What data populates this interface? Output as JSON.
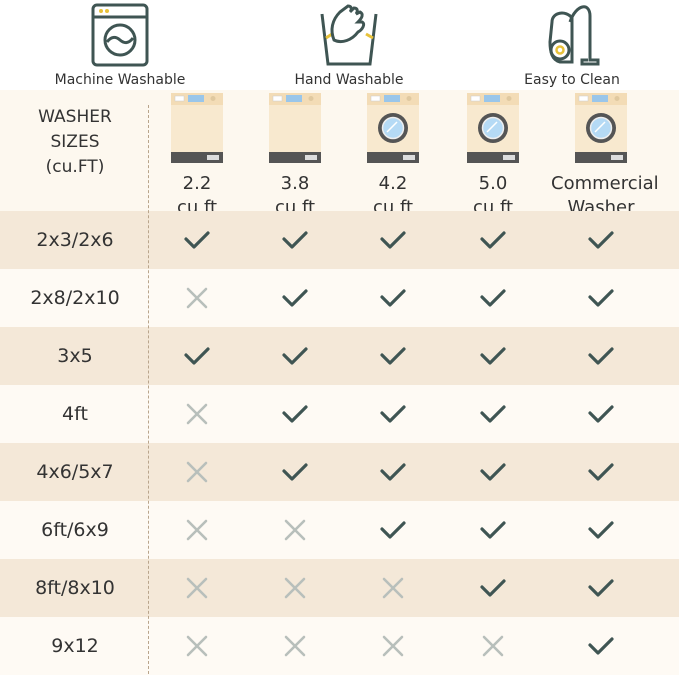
{
  "features": [
    {
      "label": "Machine Washable",
      "icon": "washing-machine-icon"
    },
    {
      "label": "Hand Washable",
      "icon": "hand-wash-icon"
    },
    {
      "label": "Easy to Clean",
      "icon": "vacuum-cleaner-icon"
    }
  ],
  "table": {
    "header_label": [
      "WASHER",
      "SIZES",
      "(cu.FT)"
    ],
    "columns": [
      {
        "line1": "2.2",
        "line2": "cu ft",
        "door": false
      },
      {
        "line1": "3.8",
        "line2": "cu ft",
        "door": false
      },
      {
        "line1": "4.2",
        "line2": "cu ft",
        "door": true
      },
      {
        "line1": "5.0",
        "line2": "cu ft",
        "door": true
      },
      {
        "line1": "Commercial",
        "line2": "Washer",
        "door": true
      }
    ],
    "rows": [
      {
        "size": "2x3/2x6",
        "fits": [
          true,
          true,
          true,
          true,
          true
        ]
      },
      {
        "size": "2x8/2x10",
        "fits": [
          false,
          true,
          true,
          true,
          true
        ]
      },
      {
        "size": "3x5",
        "fits": [
          true,
          true,
          true,
          true,
          true
        ]
      },
      {
        "size": "4ft",
        "fits": [
          false,
          true,
          true,
          true,
          true
        ]
      },
      {
        "size": "4x6/5x7",
        "fits": [
          false,
          true,
          true,
          true,
          true
        ]
      },
      {
        "size": "6ft/6x9",
        "fits": [
          false,
          false,
          true,
          true,
          true
        ]
      },
      {
        "size": "8ft/8x10",
        "fits": [
          false,
          false,
          false,
          true,
          true
        ]
      },
      {
        "size": "9x12",
        "fits": [
          false,
          false,
          false,
          false,
          true
        ]
      }
    ]
  },
  "colors": {
    "check": "#3f5553",
    "cross": "#b8bfbb",
    "row_alt": "#f4e8d8",
    "row_plain": "#fefaf4",
    "accent": "#e8c23a"
  }
}
